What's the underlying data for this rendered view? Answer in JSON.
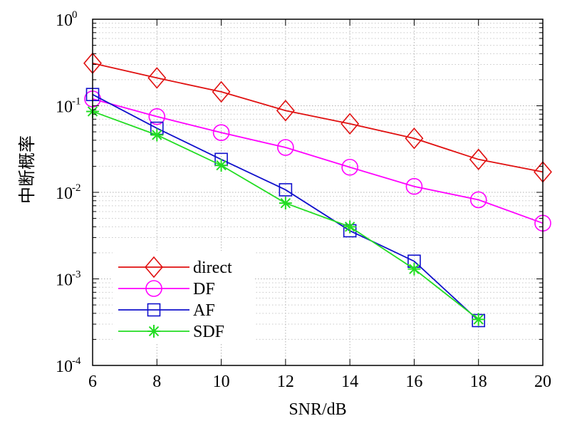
{
  "chart_data": {
    "type": "line",
    "xlabel": "SNR/dB",
    "ylabel": "中断概率",
    "xlim": [
      6,
      20
    ],
    "ylim": [
      0.0001,
      1
    ],
    "yscale": "log",
    "grid": true,
    "legend_position": "lower-left",
    "x_ticks": [
      "6",
      "8",
      "10",
      "12",
      "14",
      "16",
      "18",
      "20"
    ],
    "y_ticks": [
      {
        "base": "10",
        "exp": "-4"
      },
      {
        "base": "10",
        "exp": "-3"
      },
      {
        "base": "10",
        "exp": "-2"
      },
      {
        "base": "10",
        "exp": "-1"
      },
      {
        "base": "10",
        "exp": "0"
      }
    ],
    "series": [
      {
        "name": "direct",
        "color": "#e01010",
        "marker": "diamond",
        "x": [
          6,
          8,
          10,
          12,
          14,
          16,
          18,
          20
        ],
        "y": [
          0.31,
          0.21,
          0.145,
          0.088,
          0.062,
          0.042,
          0.024,
          0.0172
        ]
      },
      {
        "name": "DF",
        "color": "#ff00ff",
        "marker": "circle",
        "x": [
          6,
          8,
          10,
          12,
          14,
          16,
          18,
          20
        ],
        "y": [
          0.12,
          0.075,
          0.049,
          0.033,
          0.0195,
          0.0117,
          0.0082,
          0.0044
        ]
      },
      {
        "name": "AF",
        "color": "#1010cc",
        "marker": "square",
        "x": [
          6,
          8,
          10,
          12,
          14,
          16,
          18
        ],
        "y": [
          0.135,
          0.055,
          0.024,
          0.0107,
          0.0036,
          0.0016,
          0.00033
        ]
      },
      {
        "name": "SDF",
        "color": "#22dd22",
        "marker": "asterisk",
        "x": [
          6,
          8,
          10,
          12,
          14,
          16,
          18
        ],
        "y": [
          0.086,
          0.046,
          0.0205,
          0.0075,
          0.004,
          0.0013,
          0.00034
        ]
      }
    ]
  }
}
